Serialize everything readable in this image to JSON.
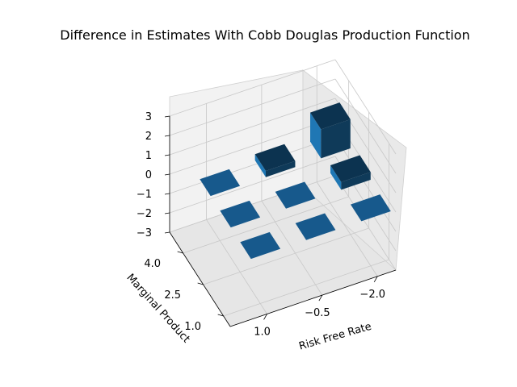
{
  "chart_data": {
    "type": "bar3d",
    "title": "Difference in Estimates With Cobb Douglas Production Function",
    "xlabel": "Risk Free Rate",
    "ylabel": "Marginal Product",
    "xticks": [
      "1.0",
      "−0.5",
      "−2.0"
    ],
    "yticks": [
      "1.0",
      "2.5",
      "4.0"
    ],
    "zticks": [
      "−3",
      "−2",
      "−1",
      "0",
      "1",
      "2",
      "3"
    ],
    "xlim": [
      2.0,
      -2.5
    ],
    "ylim": [
      0.5,
      5.0
    ],
    "zlim": [
      -3,
      3
    ],
    "bar_color": "#1f77b4",
    "bars": [
      {
        "x": 1.0,
        "y": 1.0,
        "dz": 0.0
      },
      {
        "x": 1.0,
        "y": 2.5,
        "dz": 0.0
      },
      {
        "x": 1.0,
        "y": 4.0,
        "dz": 0.0
      },
      {
        "x": -0.5,
        "y": 1.0,
        "dz": 0.0
      },
      {
        "x": -0.5,
        "y": 2.5,
        "dz": 0.0
      },
      {
        "x": -0.5,
        "y": 4.0,
        "dz": 0.32
      },
      {
        "x": -2.0,
        "y": 1.0,
        "dz": 0.0
      },
      {
        "x": -2.0,
        "y": 2.5,
        "dz": 0.4
      },
      {
        "x": -2.0,
        "y": 4.0,
        "dz": 1.5
      }
    ]
  }
}
